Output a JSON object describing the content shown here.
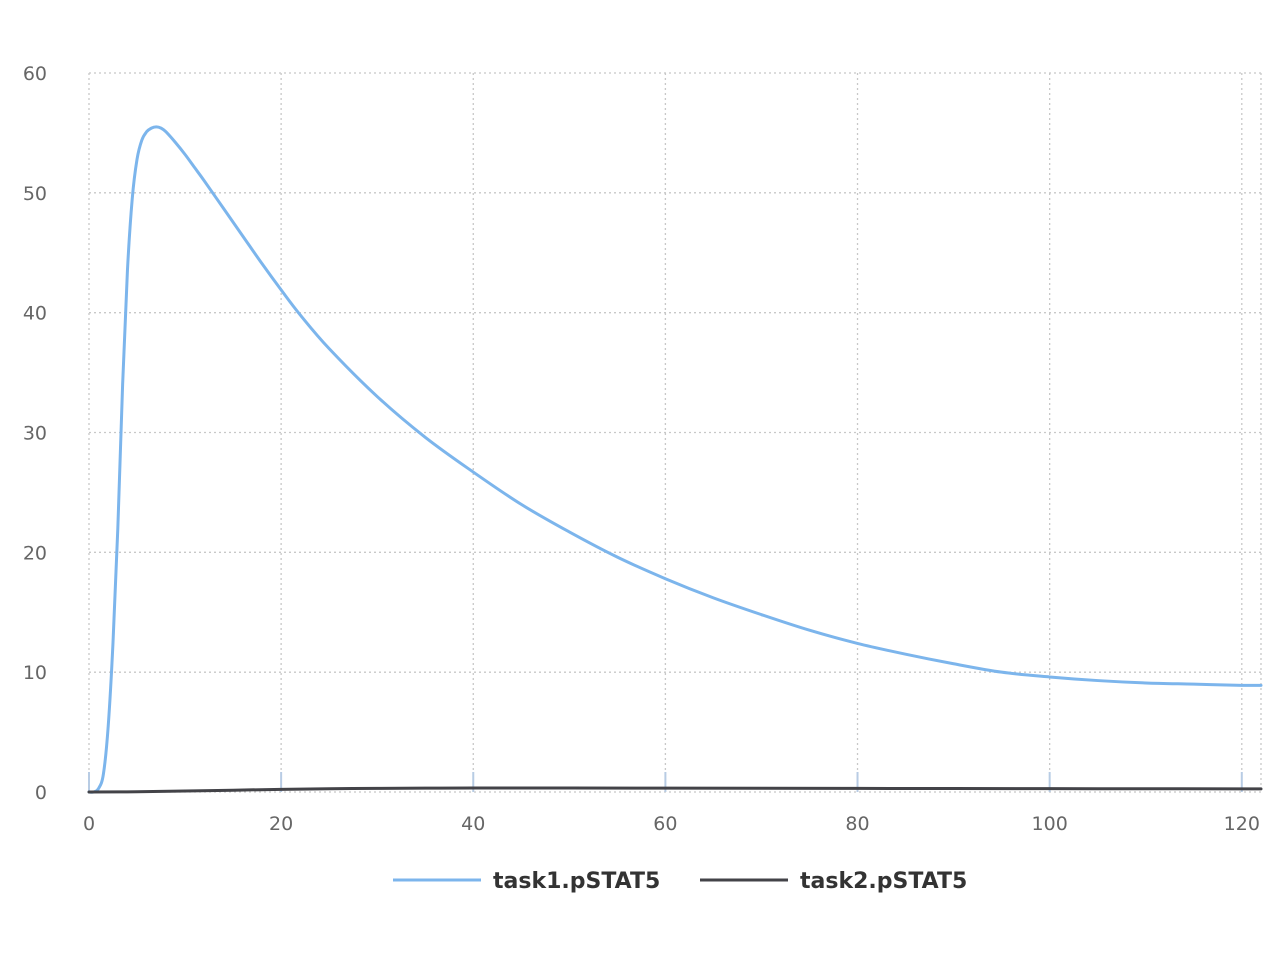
{
  "chart_data": {
    "type": "line",
    "title": "",
    "xlabel": "",
    "ylabel": "",
    "xlim": [
      0,
      122
    ],
    "ylim": [
      0,
      60
    ],
    "x_ticks": [
      0,
      20,
      40,
      60,
      80,
      100,
      120
    ],
    "y_ticks": [
      0,
      10,
      20,
      30,
      40,
      50,
      60
    ],
    "grid": true,
    "legend_position": "bottom-center",
    "series": [
      {
        "name": "task1.pSTAT5",
        "color": "#7cb5ec",
        "x": [
          0,
          0.5,
          1,
          1.5,
          2,
          2.5,
          3,
          3.5,
          4,
          4.5,
          5,
          5.5,
          6,
          6.5,
          7,
          7.5,
          8,
          9,
          10,
          11,
          12,
          14,
          16,
          18,
          20,
          22,
          25,
          30,
          35,
          40,
          45,
          50,
          55,
          60,
          65,
          70,
          75,
          80,
          85,
          90,
          95,
          100,
          105,
          110,
          115,
          120,
          122
        ],
        "y": [
          0,
          0,
          0.3,
          1.5,
          5.5,
          12.5,
          22,
          34,
          43.5,
          49.5,
          52.8,
          54.4,
          55.1,
          55.4,
          55.5,
          55.4,
          55.1,
          54.2,
          53.2,
          52.1,
          51.0,
          48.7,
          46.4,
          44.1,
          41.9,
          39.8,
          37.0,
          33.0,
          29.6,
          26.7,
          24.0,
          21.7,
          19.6,
          17.8,
          16.2,
          14.8,
          13.5,
          12.4,
          11.5,
          10.7,
          10.0,
          9.6,
          9.3,
          9.1,
          9.0,
          8.9,
          8.9
        ],
        "y_note_removed": true
      },
      {
        "name": "task2.pSTAT5",
        "color": "#434348",
        "x": [
          0,
          5,
          10,
          15,
          20,
          25,
          30,
          35,
          40,
          50,
          60,
          70,
          80,
          90,
          100,
          110,
          120,
          122
        ],
        "y": [
          0,
          0.02,
          0.08,
          0.15,
          0.22,
          0.27,
          0.3,
          0.32,
          0.33,
          0.33,
          0.32,
          0.31,
          0.3,
          0.29,
          0.28,
          0.27,
          0.26,
          0.26
        ]
      }
    ]
  }
}
